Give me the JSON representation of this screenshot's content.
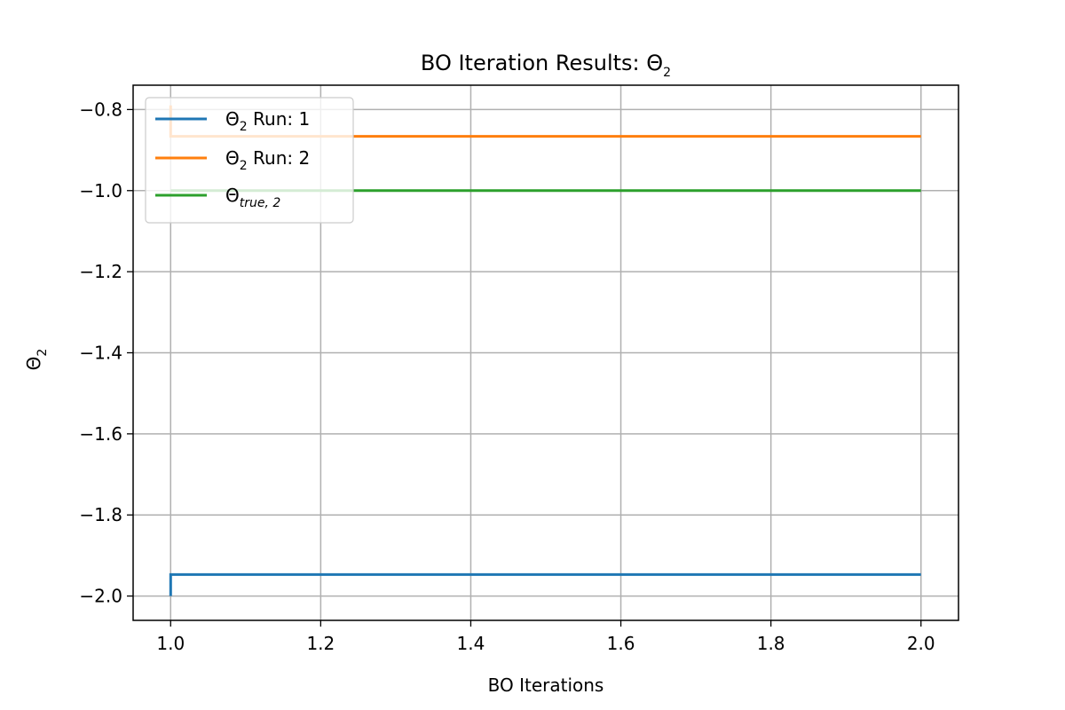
{
  "chart_data": {
    "type": "line",
    "title_main": "BO Iteration Results: Θ",
    "title_sub": "2",
    "xlabel": "BO Iterations",
    "ylabel_main": "Θ",
    "ylabel_sub": "2",
    "xlim": [
      0.95,
      2.05
    ],
    "ylim": [
      -2.06,
      -0.74
    ],
    "xticks": [
      1.0,
      1.2,
      1.4,
      1.6,
      1.8,
      2.0
    ],
    "xtick_labels": [
      "1.0",
      "1.2",
      "1.4",
      "1.6",
      "1.8",
      "2.0"
    ],
    "yticks": [
      -2.0,
      -1.8,
      -1.6,
      -1.4,
      -1.2,
      -1.0,
      -0.8
    ],
    "ytick_labels": [
      "−2.0",
      "−1.8",
      "−1.6",
      "−1.4",
      "−1.2",
      "−1.0",
      "−0.8"
    ],
    "grid": true,
    "legend_position": "upper-left",
    "series": [
      {
        "legend_main": "Θ",
        "legend_sub": "2",
        "legend_rest": " Run: 1",
        "color": "#1f77b4",
        "x": [
          1.0,
          1.0,
          2.0
        ],
        "y": [
          -2.0,
          -1.947,
          -1.947
        ]
      },
      {
        "legend_main": "Θ",
        "legend_sub": "2",
        "legend_rest": " Run: 2",
        "color": "#ff7f0e",
        "x": [
          1.0,
          1.0,
          2.0
        ],
        "y": [
          -0.79,
          -0.866,
          -0.866
        ]
      },
      {
        "legend_main": "Θ",
        "legend_sub": "true, 2",
        "legend_rest": "",
        "color": "#2ca02c",
        "x": [
          1.0,
          2.0
        ],
        "y": [
          -1.0,
          -1.0
        ]
      }
    ]
  }
}
